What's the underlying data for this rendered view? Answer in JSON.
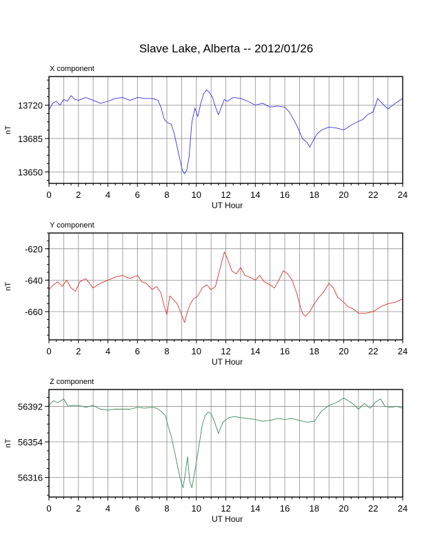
{
  "page": {
    "title": "Slave Lake, Alberta -- 2012/01/26"
  },
  "chart_data": [
    {
      "type": "line",
      "panel_label": "X component",
      "xlabel": "UT Hour",
      "ylabel": "nT",
      "xlim": [
        0,
        24
      ],
      "ylim": [
        13638,
        13750
      ],
      "x_ticks": [
        0,
        2,
        4,
        6,
        8,
        10,
        12,
        14,
        16,
        18,
        20,
        22,
        24
      ],
      "y_ticks": [
        13720,
        13685,
        13650
      ],
      "grid": true,
      "color": "#3535e0",
      "series": [
        {
          "x": [
            0,
            0.25,
            0.5,
            0.75,
            1,
            1.25,
            1.5,
            1.75,
            2,
            2.5,
            3,
            3.5,
            4,
            4.5,
            5,
            5.5,
            6,
            6.5,
            7,
            7.4,
            7.6,
            7.8,
            8,
            8.3,
            8.5,
            8.7,
            8.9,
            9.05,
            9.2,
            9.35,
            9.5,
            9.7,
            9.9,
            10.1,
            10.3,
            10.5,
            10.7,
            10.9,
            11.1,
            11.3,
            11.5,
            11.7,
            11.9,
            12.1,
            12.5,
            13,
            13.5,
            14,
            14.5,
            15,
            15.5,
            16,
            16.3,
            16.6,
            16.9,
            17.2,
            17.5,
            17.7,
            17.9,
            18.2,
            18.5,
            19,
            19.5,
            20,
            20.5,
            21,
            21.3,
            21.6,
            22,
            22.3,
            22.6,
            23,
            23.5,
            24
          ],
          "values": [
            13715,
            13722,
            13724,
            13720,
            13726,
            13724,
            13730,
            13726,
            13725,
            13728,
            13725,
            13722,
            13724,
            13727,
            13728,
            13725,
            13728,
            13727,
            13727,
            13725,
            13718,
            13706,
            13702,
            13700,
            13690,
            13676,
            13662,
            13652,
            13648,
            13652,
            13665,
            13702,
            13717,
            13708,
            13722,
            13732,
            13736,
            13733,
            13728,
            13718,
            13710,
            13718,
            13726,
            13724,
            13728,
            13727,
            13724,
            13720,
            13722,
            13718,
            13719,
            13718,
            13713,
            13705,
            13696,
            13685,
            13681,
            13676,
            13682,
            13690,
            13694,
            13697,
            13696,
            13694,
            13699,
            13703,
            13705,
            13710,
            13713,
            13727,
            13722,
            13716,
            13722,
            13727
          ]
        }
      ]
    },
    {
      "type": "line",
      "panel_label": "Y component",
      "xlabel": "UT Hour",
      "ylabel": "nT",
      "xlim": [
        0,
        24
      ],
      "ylim": [
        -678,
        -610
      ],
      "x_ticks": [
        0,
        2,
        4,
        6,
        8,
        10,
        12,
        14,
        16,
        18,
        20,
        22,
        24
      ],
      "y_ticks": [
        -620,
        -640,
        -660
      ],
      "grid": true,
      "color": "#e03030",
      "series": [
        {
          "x": [
            0,
            0.3,
            0.6,
            0.9,
            1.2,
            1.5,
            1.8,
            2.1,
            2.5,
            3,
            3.5,
            4,
            4.5,
            5,
            5.5,
            6,
            6.3,
            6.6,
            7,
            7.3,
            7.6,
            7.8,
            8,
            8.2,
            8.4,
            8.7,
            9,
            9.2,
            9.4,
            9.6,
            9.8,
            10.1,
            10.4,
            10.7,
            11,
            11.3,
            11.6,
            11.9,
            12.1,
            12.4,
            12.7,
            13,
            13.3,
            13.6,
            14,
            14.3,
            14.6,
            15,
            15.3,
            15.6,
            15.9,
            16.2,
            16.5,
            16.8,
            17,
            17.2,
            17.4,
            17.7,
            18,
            18.3,
            18.6,
            19,
            19.3,
            19.6,
            20,
            20.3,
            20.6,
            21,
            21.5,
            22,
            22.5,
            23,
            23.5,
            24
          ],
          "values": [
            -646,
            -643,
            -641,
            -644,
            -640,
            -645,
            -647,
            -641,
            -639,
            -645,
            -642,
            -640,
            -638,
            -637,
            -639,
            -637,
            -641,
            -642,
            -646,
            -644,
            -648,
            -656,
            -662,
            -650,
            -652,
            -655,
            -662,
            -667,
            -660,
            -655,
            -652,
            -650,
            -645,
            -643,
            -646,
            -644,
            -633,
            -622,
            -626,
            -634,
            -636,
            -632,
            -637,
            -638,
            -640,
            -637,
            -641,
            -643,
            -645,
            -640,
            -634,
            -636,
            -640,
            -648,
            -655,
            -661,
            -663,
            -660,
            -655,
            -651,
            -648,
            -642,
            -645,
            -651,
            -654,
            -657,
            -658,
            -661,
            -661,
            -660,
            -657,
            -655,
            -654,
            -652
          ]
        }
      ]
    },
    {
      "type": "line",
      "panel_label": "Z component",
      "xlabel": "UT Hour",
      "ylabel": "nT",
      "xlim": [
        0,
        24
      ],
      "ylim": [
        56295,
        56410
      ],
      "x_ticks": [
        0,
        2,
        4,
        6,
        8,
        10,
        12,
        14,
        16,
        18,
        20,
        22,
        24
      ],
      "y_ticks": [
        56392,
        56354,
        56316
      ],
      "grid": true,
      "color": "#3d8a5a",
      "series": [
        {
          "x": [
            0,
            0.3,
            0.6,
            1,
            1.3,
            1.6,
            2,
            2.5,
            3,
            3.5,
            4,
            4.5,
            5,
            5.5,
            6,
            6.5,
            7,
            7.3,
            7.6,
            7.9,
            8.1,
            8.3,
            8.5,
            8.7,
            8.9,
            9.1,
            9.25,
            9.4,
            9.55,
            9.7,
            9.85,
            10,
            10.2,
            10.4,
            10.6,
            10.8,
            11,
            11.2,
            11.5,
            11.8,
            12.2,
            12.6,
            13,
            13.5,
            14,
            14.5,
            15,
            15.5,
            16,
            16.5,
            17,
            17.5,
            18,
            18.5,
            19,
            19.5,
            20,
            20.3,
            20.6,
            21,
            21.4,
            21.8,
            22.2,
            22.5,
            22.8,
            23.2,
            23.6,
            24
          ],
          "values": [
            56393,
            56398,
            56396,
            56400,
            56392,
            56393,
            56393,
            56391,
            56393,
            56389,
            56388,
            56389,
            56389,
            56389,
            56391,
            56390,
            56391,
            56390,
            56387,
            56382,
            56370,
            56360,
            56345,
            56330,
            56315,
            56305,
            56320,
            56338,
            56312,
            56305,
            56318,
            56332,
            56352,
            56372,
            56382,
            56386,
            56384,
            56377,
            56363,
            56375,
            56380,
            56381,
            56380,
            56379,
            56378,
            56376,
            56377,
            56379,
            56378,
            56379,
            56377,
            56375,
            56376,
            56387,
            56393,
            56396,
            56401,
            56398,
            56395,
            56389,
            56395,
            56390,
            56397,
            56400,
            56392,
            56391,
            56392,
            56390
          ]
        }
      ]
    }
  ]
}
